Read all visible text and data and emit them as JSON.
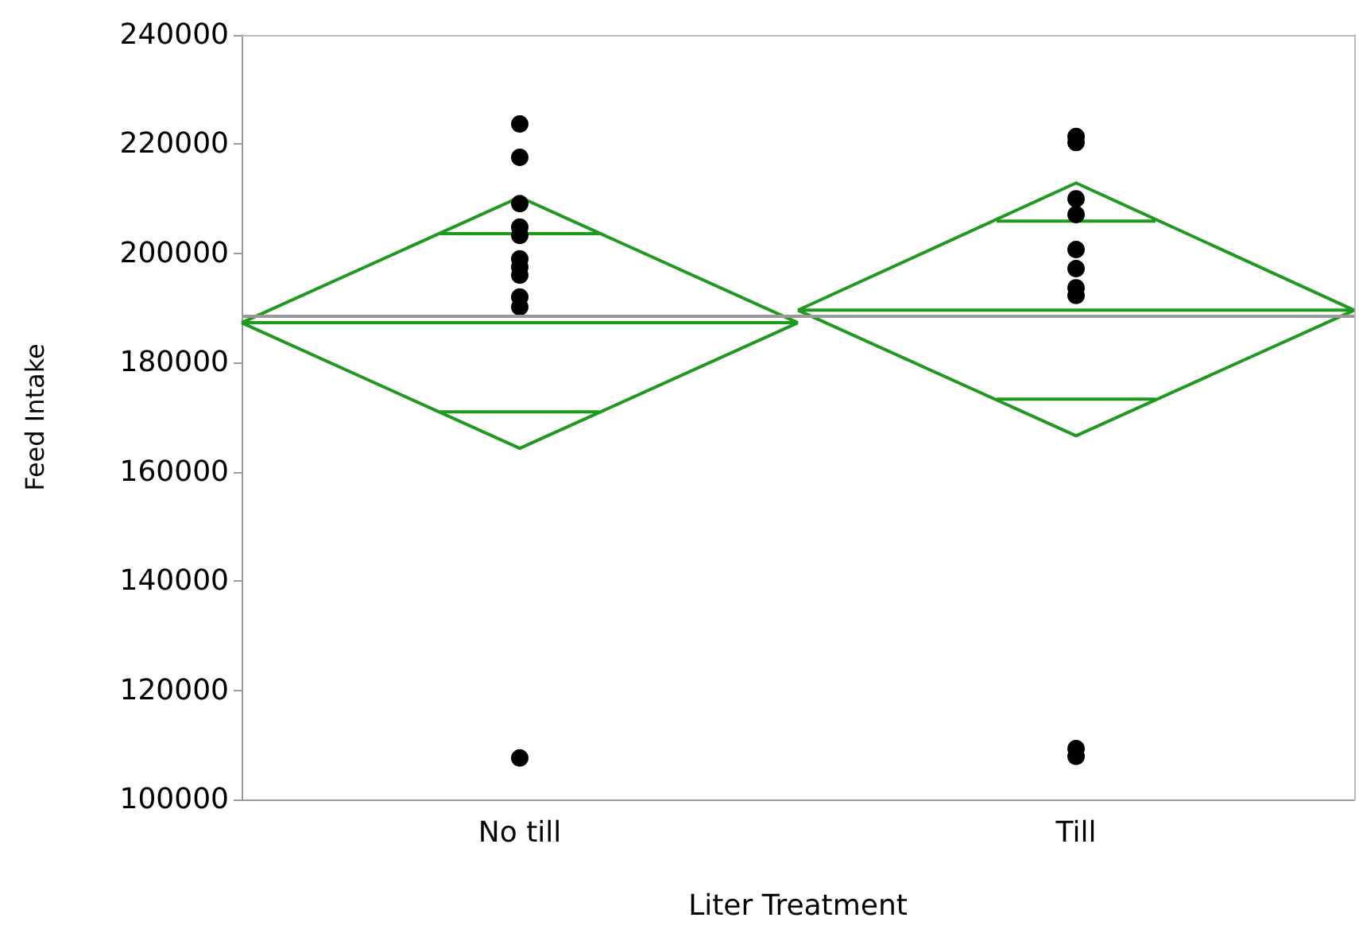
{
  "chart_data": {
    "type": "line",
    "xlabel": "Liter Treatment",
    "ylabel": "Feed Intake",
    "marker": "none",
    "categories": [
      null,
      null,
      null,
      null,
      null,
      null,
      null,
      "No till",
      null,
      null,
      null,
      null,
      null,
      null,
      null,
      null,
      null,
      null,
      null,
      null,
      null,
      "Till",
      null,
      null,
      null,
      null,
      null,
      null,
      null
    ],
    "ylim": [
      100000,
      240000
    ],
    "yticks": [
      100000,
      120000,
      140000,
      160000,
      180000,
      200000,
      220000,
      240000
    ],
    "grid": false,
    "series": [
      {
        "color": "#1f9a1f",
        "values": [
          187300,
          null,
          null,
          null,
          null,
          null,
          null,
          210300,
          null,
          null,
          null,
          null,
          null,
          null,
          187300,
          null,
          null,
          null,
          null,
          null,
          null,
          null,
          null,
          null,
          null,
          null,
          null,
          null,
          null
        ]
      },
      {
        "color": "#1f9a1f",
        "values": [
          187300,
          null,
          null,
          null,
          null,
          null,
          null,
          164300,
          null,
          null,
          null,
          null,
          null,
          null,
          187300,
          null,
          null,
          null,
          null,
          null,
          null,
          null,
          null,
          null,
          null,
          null,
          null,
          null,
          null
        ]
      },
      {
        "color": "#1f9a1f",
        "values": [
          187300,
          null,
          null,
          null,
          null,
          null,
          null,
          null,
          null,
          null,
          null,
          null,
          null,
          null,
          187300,
          null,
          null,
          null,
          null,
          null,
          null,
          null,
          null,
          null,
          null,
          null,
          null,
          null,
          null
        ]
      },
      {
        "color": "#1f9a1f",
        "values": [
          null,
          null,
          null,
          null,
          null,
          203600,
          null,
          null,
          null,
          203600,
          null,
          null,
          null,
          null,
          null,
          null,
          null,
          null,
          null,
          null,
          null,
          null,
          null,
          null,
          null,
          null,
          null,
          null,
          null
        ]
      },
      {
        "color": "#1f9a1f",
        "values": [
          null,
          null,
          null,
          null,
          null,
          171000,
          null,
          null,
          null,
          171000,
          null,
          null,
          null,
          null,
          null,
          null,
          null,
          null,
          null,
          null,
          null,
          null,
          null,
          null,
          null,
          null,
          null,
          null,
          null
        ]
      },
      {
        "color": "#1f9a1f",
        "values": [
          null,
          null,
          null,
          null,
          null,
          null,
          null,
          null,
          null,
          null,
          null,
          null,
          null,
          null,
          189600,
          null,
          null,
          null,
          null,
          null,
          null,
          212900,
          null,
          null,
          null,
          null,
          null,
          null,
          189600
        ]
      },
      {
        "color": "#1f9a1f",
        "values": [
          null,
          null,
          null,
          null,
          null,
          null,
          null,
          null,
          null,
          null,
          null,
          null,
          null,
          null,
          189600,
          null,
          null,
          null,
          null,
          null,
          null,
          166600,
          null,
          null,
          null,
          null,
          null,
          null,
          189600
        ]
      },
      {
        "color": "#1f9a1f",
        "values": [
          null,
          null,
          null,
          null,
          null,
          null,
          null,
          null,
          null,
          null,
          null,
          null,
          null,
          null,
          189600,
          null,
          null,
          null,
          null,
          null,
          null,
          null,
          null,
          null,
          null,
          null,
          null,
          null,
          189600
        ]
      },
      {
        "color": "#1f9a1f",
        "values": [
          null,
          null,
          null,
          null,
          null,
          null,
          null,
          null,
          null,
          null,
          null,
          null,
          null,
          null,
          null,
          null,
          null,
          null,
          null,
          205900,
          null,
          null,
          null,
          205900,
          null,
          null,
          null,
          null,
          null
        ]
      },
      {
        "color": "#1f9a1f",
        "values": [
          null,
          null,
          null,
          null,
          null,
          null,
          null,
          null,
          null,
          null,
          null,
          null,
          null,
          null,
          null,
          null,
          null,
          null,
          null,
          173300,
          null,
          null,
          null,
          173300,
          null,
          null,
          null,
          null,
          null
        ]
      },
      {
        "type": "scatter",
        "color": "#000000",
        "marker": "circle",
        "x": [
          "No till",
          "No till",
          "No till",
          "No till",
          "No till",
          "No till",
          "No till",
          "No till",
          "No till",
          "No till",
          "No till",
          "Till",
          "Till",
          "Till",
          "Till",
          "Till",
          "Till",
          "Till",
          "Till",
          "Till",
          "Till"
        ],
        "values": [
          223700,
          217600,
          209100,
          204800,
          203300,
          199000,
          197500,
          196000,
          192000,
          190200,
          107600,
          221400,
          220300,
          210000,
          207100,
          200700,
          197200,
          193700,
          192300,
          109300,
          107900
        ]
      }
    ],
    "ref_lines": [
      {
        "axis": "y",
        "value": 188500,
        "color": "#999999"
      }
    ]
  }
}
